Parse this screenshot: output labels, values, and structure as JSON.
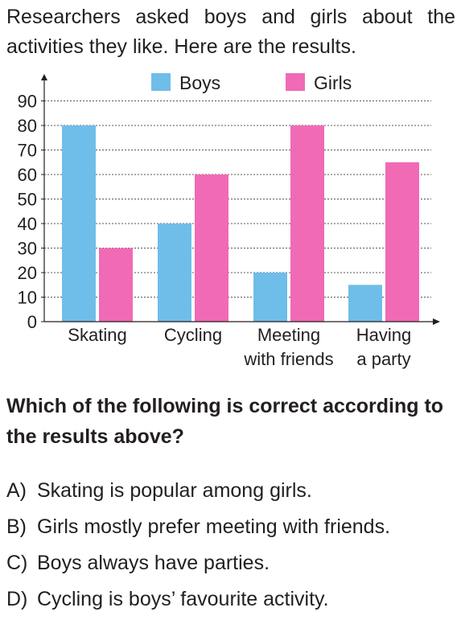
{
  "intro": "Researchers asked boys and girls about the activities they like. Here are the results.",
  "chart_data": {
    "type": "bar",
    "categories": [
      "Skating",
      "Cycling",
      "Meeting|with friends",
      "Having|a party"
    ],
    "series": [
      {
        "name": "Boys",
        "color": "#6ebee9",
        "values": [
          80,
          40,
          20,
          15
        ]
      },
      {
        "name": "Girls",
        "color": "#f06ab5",
        "values": [
          30,
          60,
          80,
          65
        ]
      }
    ],
    "y_ticks": [
      0,
      10,
      20,
      30,
      40,
      50,
      60,
      70,
      80,
      90
    ],
    "ylim": [
      0,
      90
    ],
    "grid": "dashed horizontal",
    "legend": "top"
  },
  "question": "Which of the following is correct according to the results above?",
  "options": [
    {
      "letter": "A)",
      "text": "Skating is popular among girls."
    },
    {
      "letter": "B)",
      "text": "Girls mostly prefer meeting with friends."
    },
    {
      "letter": "C)",
      "text": "Boys always have parties."
    },
    {
      "letter": "D)",
      "text": "Cycling is boys’ favourite activity."
    }
  ]
}
